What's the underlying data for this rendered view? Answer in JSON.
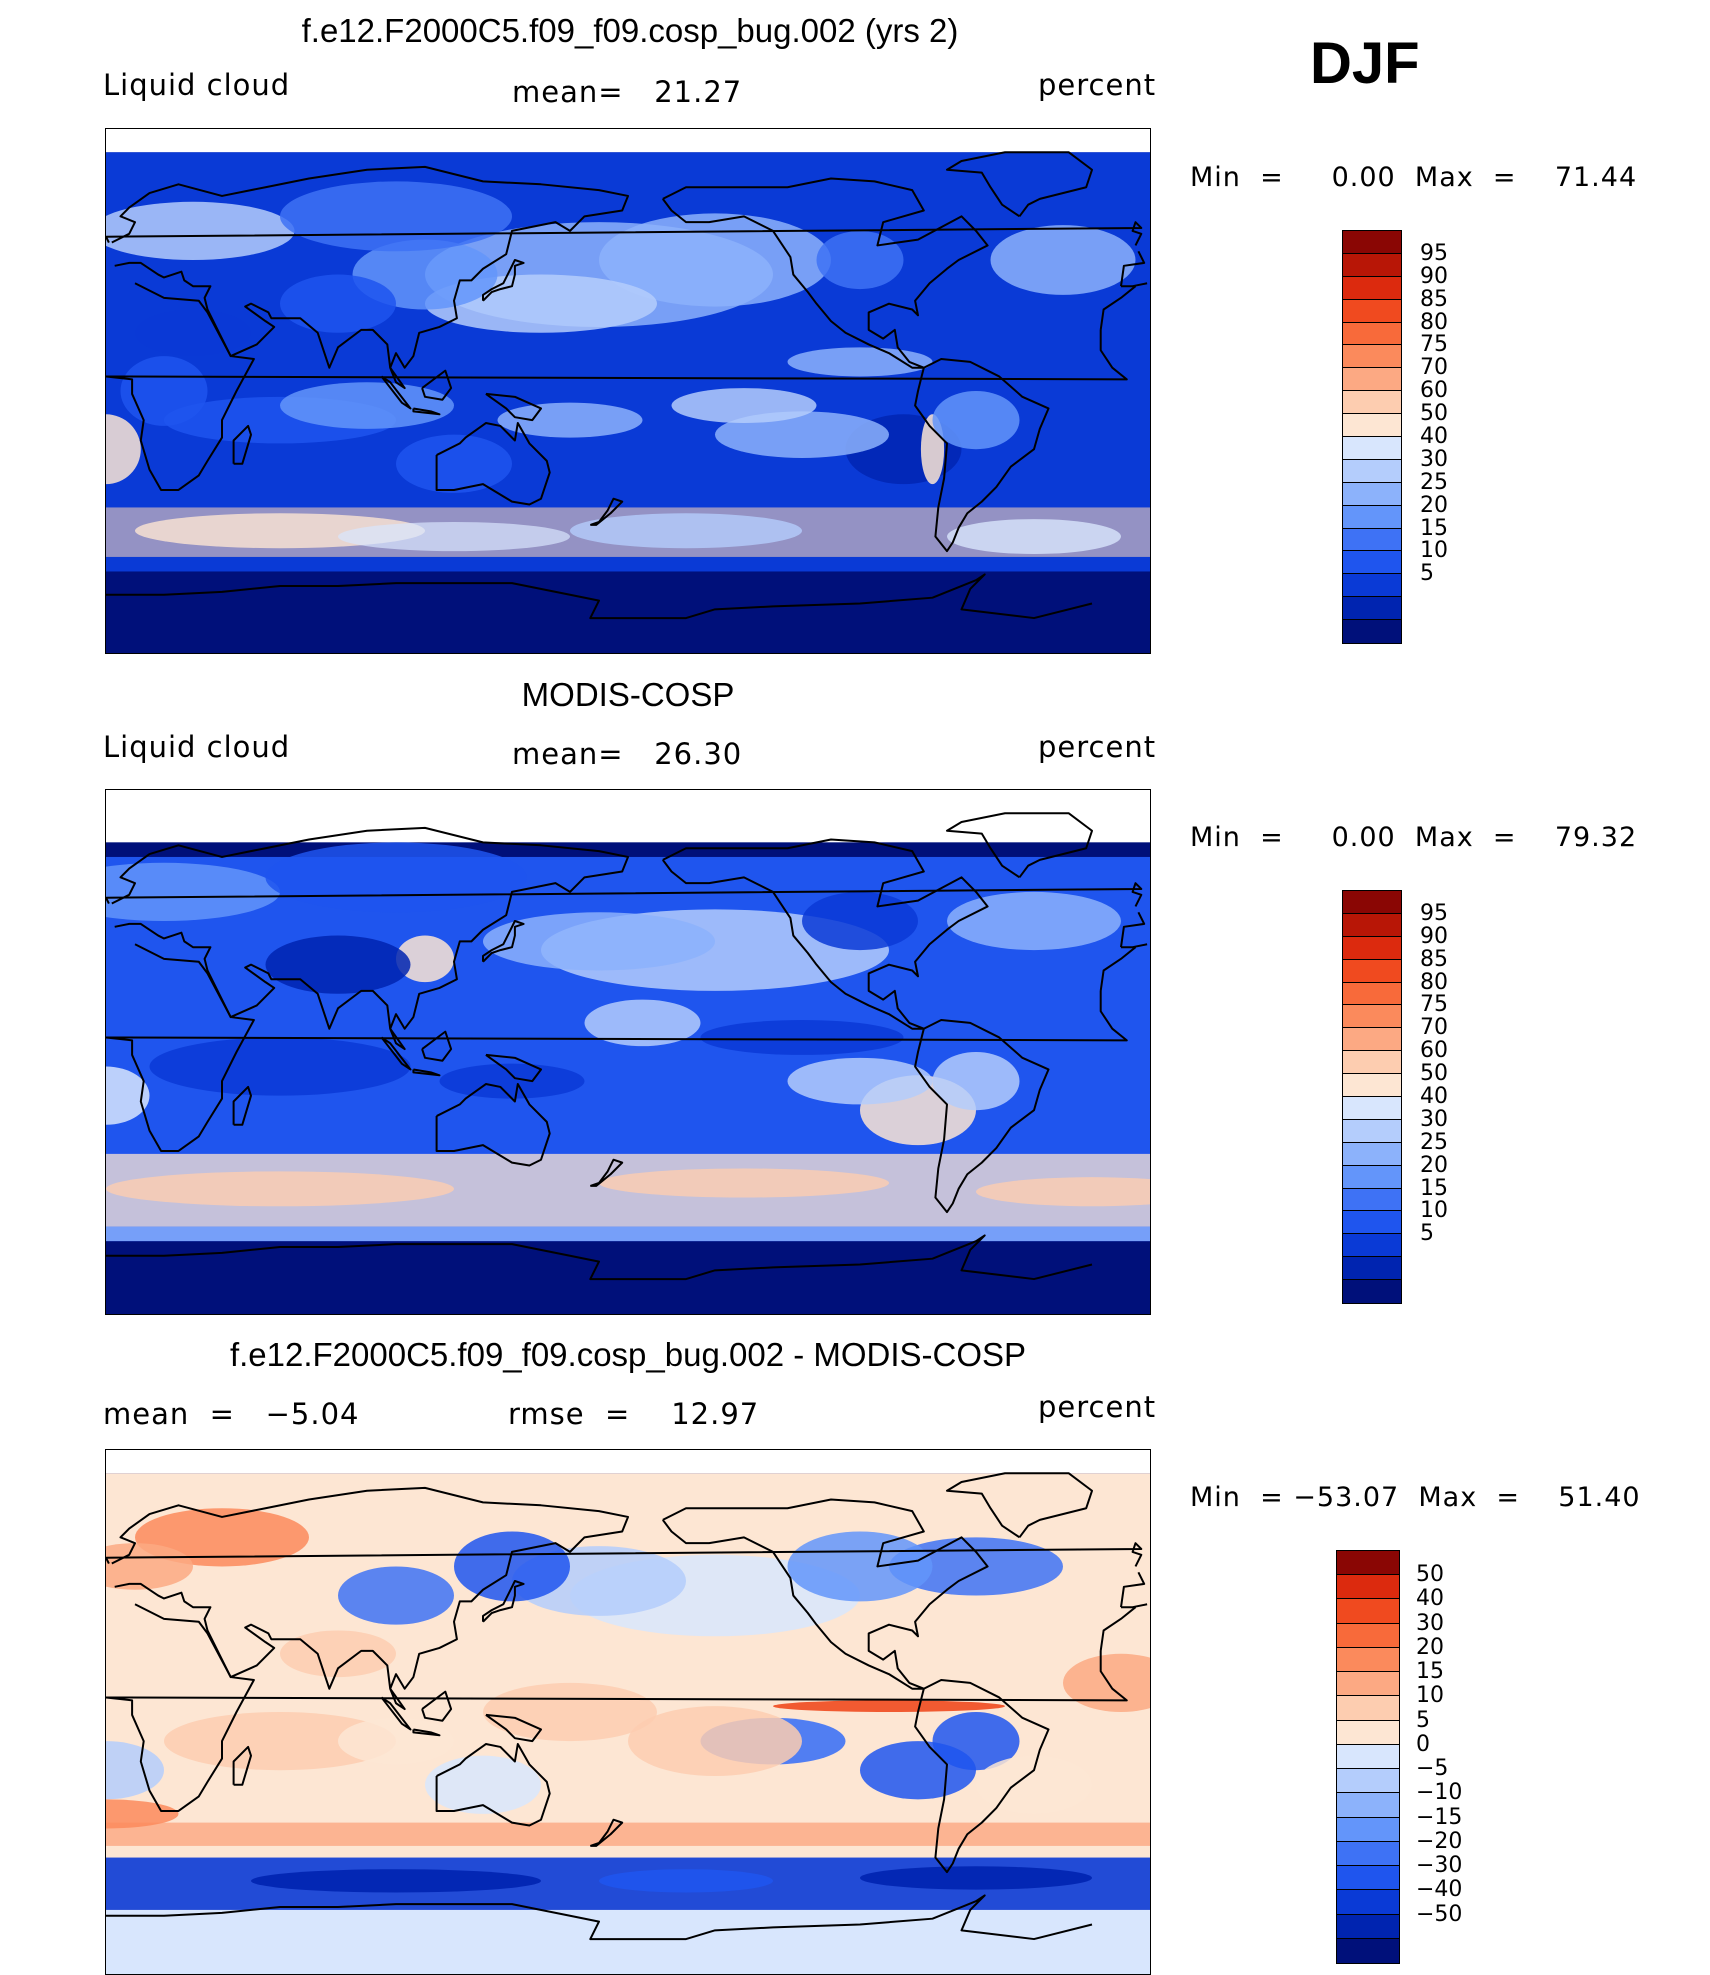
{
  "season": "DJF",
  "colors": {
    "abs": [
      "#00107a",
      "#0024b0",
      "#0a3ad6",
      "#1f55ee",
      "#3e72f5",
      "#6395fa",
      "#8cb2fb",
      "#b4cdfc",
      "#d8e6fd",
      "#fde6d3",
      "#fdcdb0",
      "#fca983",
      "#fb8a5c",
      "#f86a3a",
      "#f04a1f",
      "#dc2a0e",
      "#b81606",
      "#8a0604"
    ],
    "diff": [
      "#00107a",
      "#0024b0",
      "#0a3ad6",
      "#1f55ee",
      "#3e72f5",
      "#6395fa",
      "#8cb2fb",
      "#b4cdfc",
      "#d8e6fd",
      "#fde6d3",
      "#fdcdb0",
      "#fca983",
      "#fb8a5c",
      "#f86a3a",
      "#f04a1f",
      "#dc2a0e",
      "#8a0604"
    ]
  },
  "panels": [
    {
      "title": "f.e12.F2000C5.f09_f09.cosp_bug.002 (yrs 2)",
      "left_label": "Liquid cloud",
      "center_label": "mean=   21.27",
      "right_label": "percent",
      "minmax": "Min  =     0.00  Max  =    71.44",
      "colorbar_ticks": [
        "95",
        "90",
        "85",
        "80",
        "75",
        "70",
        "60",
        "50",
        "40",
        "30",
        "25",
        "20",
        "15",
        "10",
        "5"
      ]
    },
    {
      "title": "MODIS-COSP",
      "left_label": "Liquid cloud",
      "center_label": "mean=   26.30",
      "right_label": "percent",
      "minmax": "Min  =     0.00  Max  =    79.32",
      "colorbar_ticks": [
        "95",
        "90",
        "85",
        "80",
        "75",
        "70",
        "60",
        "50",
        "40",
        "30",
        "25",
        "20",
        "15",
        "10",
        "5"
      ]
    },
    {
      "title": "f.e12.F2000C5.f09_f09.cosp_bug.002 - MODIS-COSP",
      "left_label": "mean  =   −5.04",
      "center_label": "rmse  =    12.97",
      "right_label": "percent",
      "minmax": "Min  = −53.07  Max  =    51.40",
      "colorbar_ticks": [
        "50",
        "40",
        "30",
        "20",
        "15",
        "10",
        "5",
        "0",
        "−5",
        "−10",
        "−15",
        "−20",
        "−30",
        "−40",
        "−50"
      ]
    }
  ]
}
